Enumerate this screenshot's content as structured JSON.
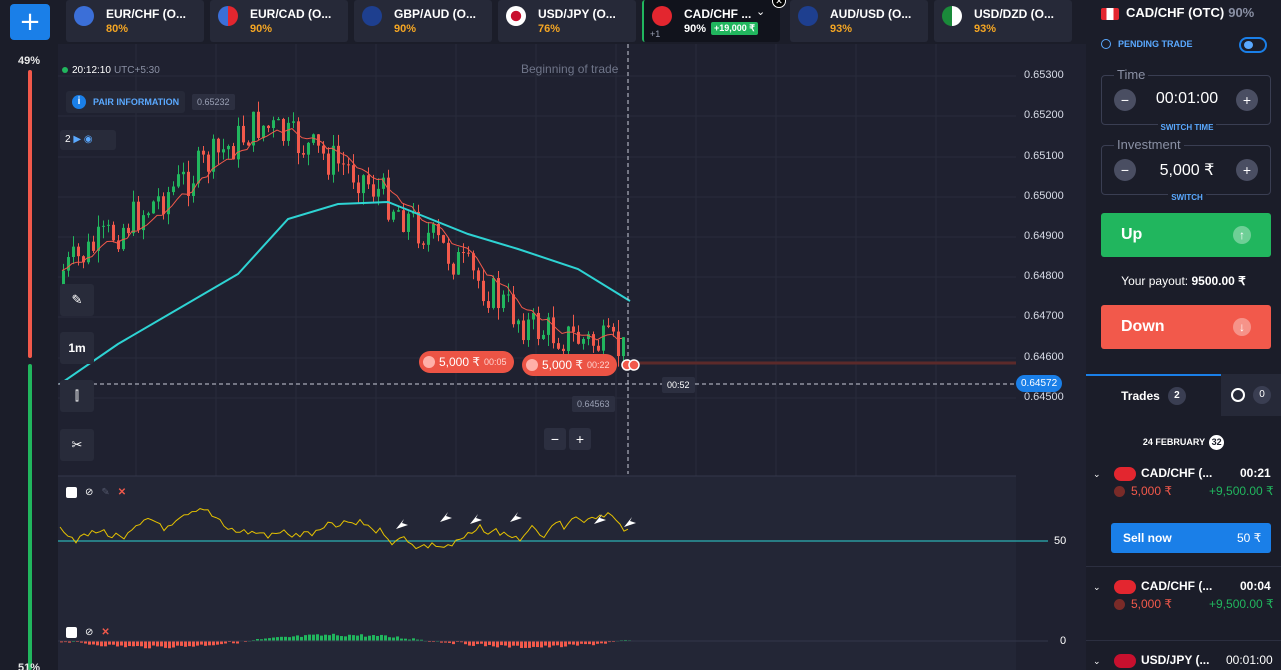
{
  "sentiment": {
    "top": "49%",
    "bottom": "51%"
  },
  "add_label": "+",
  "tabs": [
    {
      "name": "EUR/CHF (O...",
      "pct": "80%",
      "flag_color": "#3b6fd8"
    },
    {
      "name": "EUR/CAD (O...",
      "pct": "90%",
      "flag_color": "#3b6fd8"
    },
    {
      "name": "GBP/AUD (O...",
      "pct": "90%",
      "flag_color": "#1e3f8f"
    },
    {
      "name": "USD/JPY (O...",
      "pct": "76%",
      "flag_color": "#c8102e"
    },
    {
      "name": "CAD/CHF ...",
      "pct": "90%",
      "profit": "+19,000 ₹",
      "plus": "+1",
      "flag_color": "#e3262f"
    },
    {
      "name": "AUD/USD (O...",
      "pct": "93%",
      "flag_color": "#1e3f8f"
    },
    {
      "name": "USD/DZD (O...",
      "pct": "93%",
      "flag_color": "#b22234"
    }
  ],
  "chart": {
    "time": "20:12:10",
    "timezone": "UTC+5:30",
    "pair_info_label": "PAIR INFORMATION",
    "high_tag": "0.65232",
    "low_tag": "0.64563",
    "beginning_label": "Beginning of trade",
    "layers_label": "2",
    "timeframe": "1m",
    "timer": "00:52",
    "current_price": "0.64572",
    "yaxis": [
      "0.65300",
      "0.65200",
      "0.65100",
      "0.65000",
      "0.64900",
      "0.64800",
      "0.64700",
      "0.64600",
      "0.64500"
    ],
    "trades": [
      {
        "amount": "5,000 ₹",
        "time": "00:05"
      },
      {
        "amount": "5,000 ₹",
        "time": "00:22"
      }
    ],
    "zoom_minus": "−",
    "zoom_plus": "+",
    "rsi_level": "50",
    "macd_level": "0",
    "colors": {
      "up": "#21b65e",
      "down": "#f2594b",
      "ma_fast": "#f2594b",
      "ma_slow": "#2ed3d3",
      "rsi": "#e5c100"
    }
  },
  "panel": {
    "pair": "CAD/CHF (OTC)",
    "pair_pct": "90%",
    "pending_label": "PENDING TRADE",
    "time_label": "Time",
    "time_value": "00:01:00",
    "switch_time_label": "SWITCH TIME",
    "investment_label": "Investment",
    "investment_value": "5,000 ₹",
    "switch_label": "SWITCH",
    "up_label": "Up",
    "payout_prefix": "Your payout:",
    "payout_value": "9500.00 ₹",
    "down_label": "Down",
    "trades_tab": "Trades",
    "trades_count": "2",
    "history_count": "0",
    "date": "24 FEBRUARY",
    "date_count": "32",
    "open_trades": [
      {
        "pair": "CAD/CHF (...",
        "time": "00:21",
        "amount": "5,000 ₹",
        "win": "+9,500.00 ₹"
      },
      {
        "pair": "CAD/CHF (...",
        "time": "00:04",
        "amount": "5,000 ₹",
        "win": "+9,500.00 ₹"
      },
      {
        "pair": "USD/JPY (...",
        "time": "00:01:00"
      }
    ],
    "sell_now_label": "Sell now",
    "sell_now_value": "50 ₹"
  }
}
